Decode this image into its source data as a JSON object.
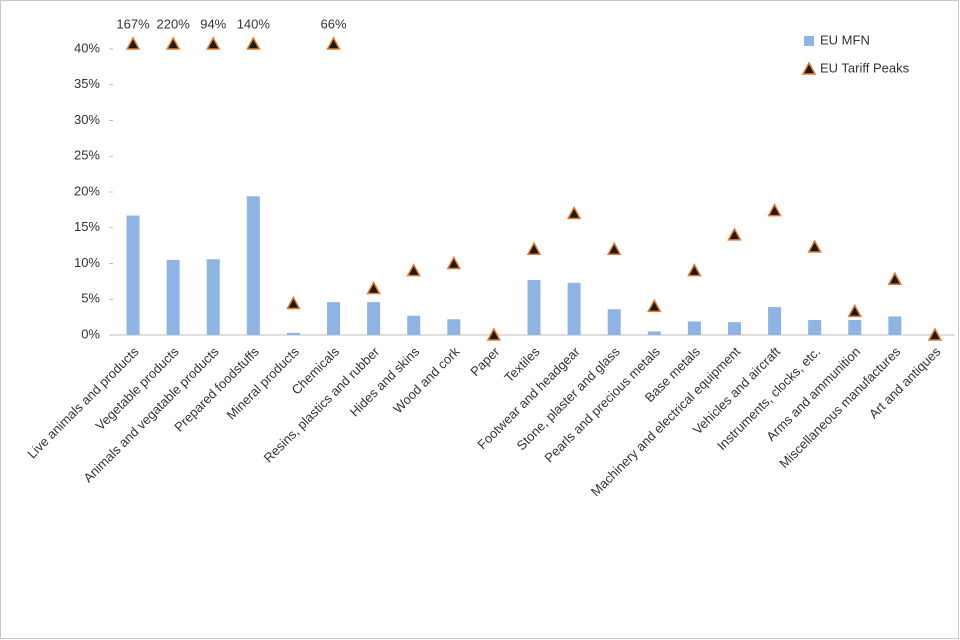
{
  "chart_data": {
    "type": "bar",
    "categories": [
      "Live animals and products",
      "Vegetable products",
      "Animals and vegatable products",
      "Prepared foodstuffs",
      "Mineral products",
      "Chemicals",
      "Resins, plastics and rubber",
      "Hides and skins",
      "Wood and cork",
      "Paper",
      "Textiles",
      "Footwear and headgear",
      "Stone, plaster and glass",
      "Pearls and precious metals",
      "Base metals",
      "Machinery and electrical equipment",
      "Vehicles and aircraft",
      "Instruments, clocks, etc.",
      "Arms and ammunition",
      "Miscellaneous manufactures",
      "Art and antiques"
    ],
    "series": [
      {
        "name": "EU MFN",
        "type": "bar",
        "color": "#8eb4e3",
        "values": [
          16.7,
          10.5,
          10.6,
          19.4,
          0.3,
          4.6,
          4.6,
          2.7,
          2.2,
          0,
          7.7,
          7.3,
          3.6,
          0.5,
          1.9,
          1.8,
          3.9,
          2.1,
          2.1,
          2.6,
          0
        ]
      },
      {
        "name": "EU Tariff Peaks",
        "type": "scatter",
        "color": "#e8782b",
        "values": [
          167,
          220,
          94,
          140,
          4.4,
          66,
          6.5,
          9,
          10,
          0,
          12,
          17,
          12,
          4,
          9,
          14,
          17.4,
          12.3,
          3.3,
          7.8,
          0
        ],
        "value_labels": [
          "167%",
          "220%",
          "94%",
          "140%",
          null,
          "66%",
          null,
          null,
          null,
          null,
          null,
          null,
          null,
          null,
          null,
          null,
          null,
          null,
          null,
          null,
          null
        ]
      }
    ],
    "ylim": [
      0,
      40
    ],
    "yticks": [
      {
        "value": 0,
        "label": "0%"
      },
      {
        "value": 5,
        "label": "5%"
      },
      {
        "value": 10,
        "label": "10%"
      },
      {
        "value": 15,
        "label": "15%"
      },
      {
        "value": 20,
        "label": "20%"
      },
      {
        "value": 25,
        "label": "25%"
      },
      {
        "value": 30,
        "label": "30%"
      },
      {
        "value": 35,
        "label": "35%"
      },
      {
        "value": 40,
        "label": "40%"
      }
    ],
    "legend": "top-right"
  }
}
